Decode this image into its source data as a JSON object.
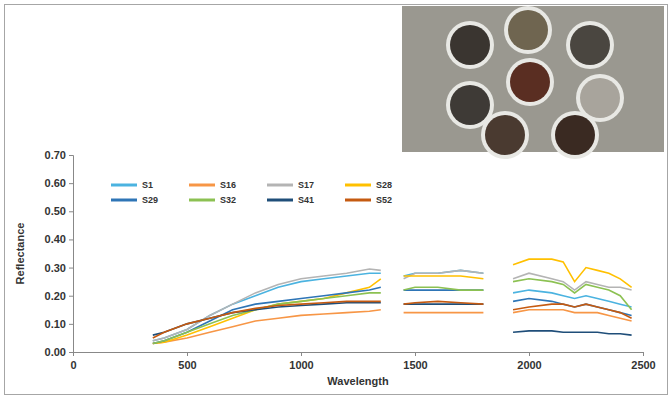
{
  "chart_data": {
    "type": "line",
    "x_label": "Wavelength",
    "y_label": "Reflectance",
    "x": [
      350,
      400,
      500,
      600,
      700,
      800,
      900,
      1000,
      1100,
      1200,
      1300,
      1350,
      1400,
      1450,
      1500,
      1600,
      1700,
      1800,
      1860,
      1930,
      2000,
      2100,
      2150,
      2200,
      2250,
      2300,
      2350,
      2400,
      2450
    ],
    "xlim": [
      0,
      2500
    ],
    "xticks": [
      0,
      500,
      1000,
      1500,
      2000,
      2500
    ],
    "ylim": [
      0,
      0.7
    ],
    "yticks": [
      {
        "value": 0,
        "label": "0.00"
      },
      {
        "value": 0.1,
        "label": "0.10"
      },
      {
        "value": 0.2,
        "label": "0.20"
      },
      {
        "value": 0.3,
        "label": "0.30"
      },
      {
        "value": 0.4,
        "label": "0.40"
      },
      {
        "value": 0.5,
        "label": "0.50"
      },
      {
        "value": 0.6,
        "label": "0.60"
      },
      {
        "value": 0.7,
        "label": "0.70"
      }
    ],
    "grid": false,
    "legend": "top-left",
    "series": [
      {
        "name": "S1",
        "color": "#4bb3e0",
        "values": [
          0.04,
          0.05,
          0.08,
          0.13,
          0.17,
          0.2,
          0.23,
          0.25,
          0.26,
          0.27,
          0.28,
          0.28,
          null,
          0.27,
          0.28,
          0.28,
          0.29,
          0.28,
          null,
          0.21,
          0.22,
          0.21,
          0.2,
          0.19,
          0.2,
          0.19,
          0.18,
          0.17,
          0.16
        ]
      },
      {
        "name": "S16",
        "color": "#f79646",
        "values": [
          0.03,
          0.035,
          0.05,
          0.07,
          0.09,
          0.11,
          0.12,
          0.13,
          0.135,
          0.14,
          0.145,
          0.15,
          null,
          0.14,
          0.14,
          0.14,
          0.14,
          0.14,
          null,
          0.14,
          0.15,
          0.15,
          0.15,
          0.14,
          0.14,
          0.14,
          0.13,
          0.12,
          0.11
        ]
      },
      {
        "name": "S17",
        "color": "#b4b4b4",
        "values": [
          0.04,
          0.05,
          0.08,
          0.13,
          0.17,
          0.21,
          0.24,
          0.26,
          0.27,
          0.28,
          0.295,
          0.29,
          null,
          0.26,
          0.28,
          0.28,
          0.29,
          0.28,
          null,
          0.26,
          0.28,
          0.26,
          0.25,
          0.22,
          0.25,
          0.24,
          0.23,
          0.23,
          0.22
        ]
      },
      {
        "name": "S28",
        "color": "#ffc000",
        "values": [
          0.03,
          0.035,
          0.06,
          0.09,
          0.12,
          0.15,
          0.17,
          0.18,
          0.19,
          0.21,
          0.23,
          0.26,
          null,
          0.27,
          0.27,
          0.27,
          0.27,
          0.26,
          null,
          0.31,
          0.33,
          0.33,
          0.32,
          0.25,
          0.3,
          0.29,
          0.28,
          0.26,
          0.23
        ]
      },
      {
        "name": "S29",
        "color": "#2e75b6",
        "values": [
          0.03,
          0.04,
          0.07,
          0.11,
          0.15,
          0.17,
          0.18,
          0.19,
          0.2,
          0.21,
          0.22,
          0.23,
          null,
          0.22,
          0.22,
          0.22,
          0.22,
          0.22,
          null,
          0.18,
          0.19,
          0.18,
          0.17,
          0.16,
          0.17,
          0.16,
          0.15,
          0.14,
          0.13
        ]
      },
      {
        "name": "S32",
        "color": "#8cc152",
        "values": [
          0.03,
          0.04,
          0.07,
          0.1,
          0.13,
          0.15,
          0.17,
          0.18,
          0.19,
          0.2,
          0.21,
          0.21,
          null,
          0.22,
          0.23,
          0.23,
          0.22,
          0.22,
          null,
          0.25,
          0.26,
          0.25,
          0.24,
          0.21,
          0.24,
          0.23,
          0.22,
          0.2,
          0.15
        ]
      },
      {
        "name": "S41",
        "color": "#1f4e79",
        "values": [
          0.06,
          0.07,
          0.1,
          0.12,
          0.14,
          0.15,
          0.16,
          0.165,
          0.17,
          0.175,
          0.175,
          0.175,
          null,
          0.17,
          0.17,
          0.17,
          0.17,
          0.17,
          null,
          0.07,
          0.075,
          0.075,
          0.07,
          0.07,
          0.07,
          0.07,
          0.065,
          0.065,
          0.06
        ]
      },
      {
        "name": "S52",
        "color": "#c55a11",
        "values": [
          0.05,
          0.07,
          0.1,
          0.12,
          0.14,
          0.155,
          0.165,
          0.17,
          0.175,
          0.18,
          0.18,
          0.18,
          null,
          0.17,
          0.175,
          0.18,
          0.175,
          0.17,
          null,
          0.15,
          0.16,
          0.17,
          0.17,
          0.16,
          0.17,
          0.16,
          0.15,
          0.14,
          0.12
        ]
      }
    ]
  }
}
